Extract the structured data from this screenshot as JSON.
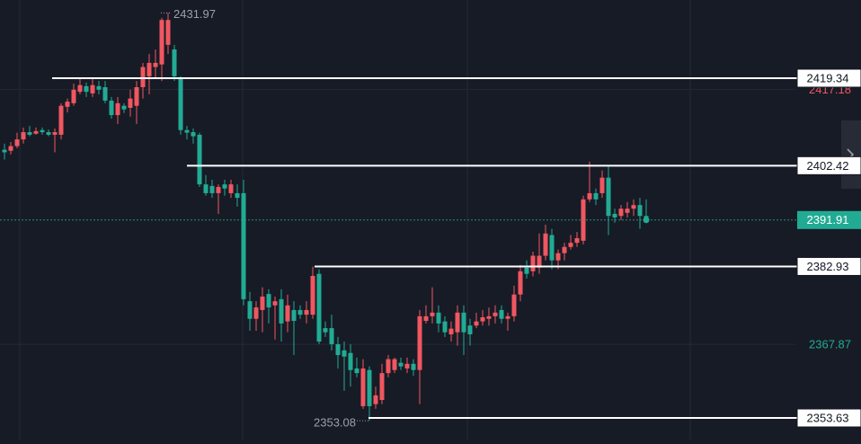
{
  "chart_data": {
    "type": "candlestick",
    "up_color": "#f05760",
    "down_color": "#22ab94",
    "ylim": [
      2349.46,
      2434.46
    ],
    "yticks": [
      2367.87,
      2417.18
    ],
    "ytick_colors": [
      "#22ab94",
      "#f05760"
    ],
    "grid": true,
    "levels": [
      2419.34,
      2402.42,
      2382.93,
      2353.63
    ],
    "open": [
      2405.5,
      2405.3,
      2406.2,
      2407.5,
      2408.9,
      2408.6,
      2409.3,
      2408.9,
      2408.4,
      2408.4,
      2413.8,
      2414.5,
      2416.7,
      2417.8,
      2416.4,
      2417.8,
      2417.6,
      2415.0,
      2412.2,
      2414.0,
      2413.6,
      2414.0,
      2417.6,
      2419.7,
      2421.5,
      2422.0,
      2425.8,
      2424.9,
      2419.2,
      2409.3,
      2408.9,
      2408.4,
      2398.8,
      2398.5,
      2397.1,
      2398.8,
      2397.1,
      2397.1,
      2397.1,
      2376.2,
      2372.8,
      2374.5,
      2377.6,
      2375.4,
      2376.6,
      2372.3,
      2374.5,
      2374.5,
      2373.6,
      2373.6,
      2381.5,
      2371.0,
      2371.0,
      2367.9,
      2366.7,
      2366.2,
      2363.2,
      2355.9,
      2362.9,
      2356.3,
      2357.1,
      2362.3,
      2362.9,
      2364.3,
      2363.2,
      2364.1,
      2362.9,
      2372.4,
      2373.3,
      2374.0,
      2372.3,
      2369.8,
      2370.2,
      2374.0,
      2371.5,
      2371.5,
      2372.3,
      2372.8,
      2373.3,
      2374.5,
      2372.8,
      2373.3,
      2377.5,
      2382.7,
      2382.0,
      2382.7,
      2385.0,
      2389.0,
      2384.1,
      2385.5,
      2386.7,
      2387.5,
      2387.9,
      2395.9,
      2397.1,
      2397.1,
      2400.1,
      2393.1,
      2392.7,
      2393.3,
      2394.1,
      2394.8,
      2392.7
    ],
    "high": [
      2406.7,
      2407.0,
      2408.8,
      2409.8,
      2410.1,
      2409.8,
      2409.8,
      2409.4,
      2409.6,
      2414.5,
      2415.4,
      2418.3,
      2419.2,
      2418.5,
      2419.2,
      2418.8,
      2418.8,
      2415.7,
      2415.7,
      2414.5,
      2417.1,
      2418.8,
      2422.3,
      2424.0,
      2424.9,
      2431.0,
      2431.97,
      2425.8,
      2419.7,
      2410.1,
      2409.6,
      2408.8,
      2400.6,
      2399.7,
      2398.8,
      2399.7,
      2399.7,
      2398.8,
      2399.7,
      2378.0,
      2376.2,
      2378.9,
      2378.5,
      2377.1,
      2378.5,
      2377.5,
      2376.2,
      2375.4,
      2376.2,
      2382.9,
      2382.4,
      2372.3,
      2373.6,
      2369.3,
      2368.4,
      2367.9,
      2365.3,
      2365.0,
      2363.6,
      2359.7,
      2364.1,
      2365.8,
      2365.3,
      2365.3,
      2365.3,
      2365.0,
      2374.5,
      2375.4,
      2378.9,
      2375.4,
      2373.3,
      2372.3,
      2375.4,
      2375.4,
      2372.8,
      2374.0,
      2374.5,
      2375.0,
      2375.4,
      2375.4,
      2374.0,
      2379.2,
      2383.2,
      2384.1,
      2385.8,
      2389.3,
      2391.0,
      2390.2,
      2386.2,
      2387.5,
      2389.0,
      2389.6,
      2396.6,
      2403.2,
      2398.0,
      2401.5,
      2402.3,
      2394.1,
      2394.8,
      2395.4,
      2395.9,
      2396.2,
      2395.9
    ],
    "low": [
      2403.6,
      2404.6,
      2405.8,
      2406.7,
      2408.1,
      2408.4,
      2408.4,
      2408.1,
      2405.0,
      2407.5,
      2412.7,
      2414.0,
      2416.2,
      2415.7,
      2415.7,
      2416.2,
      2414.5,
      2411.5,
      2410.5,
      2412.6,
      2411.9,
      2410.5,
      2415.4,
      2416.2,
      2419.2,
      2418.8,
      2424.0,
      2418.8,
      2408.4,
      2407.5,
      2406.7,
      2398.3,
      2396.6,
      2396.2,
      2393.1,
      2396.6,
      2396.2,
      2394.5,
      2375.4,
      2370.5,
      2370.5,
      2370.2,
      2371.9,
      2368.8,
      2368.4,
      2370.2,
      2365.8,
      2372.8,
      2371.9,
      2372.8,
      2367.9,
      2369.3,
      2366.7,
      2363.2,
      2358.9,
      2359.7,
      2361.5,
      2355.4,
      2353.08,
      2355.4,
      2356.3,
      2361.5,
      2362.3,
      2362.9,
      2362.3,
      2361.8,
      2356.3,
      2371.9,
      2371.9,
      2370.2,
      2369.3,
      2368.4,
      2367.6,
      2365.8,
      2367.6,
      2371.0,
      2371.5,
      2371.5,
      2371.9,
      2371.9,
      2370.5,
      2372.3,
      2376.2,
      2380.6,
      2381.0,
      2381.5,
      2384.1,
      2382.4,
      2382.4,
      2384.1,
      2386.2,
      2386.7,
      2387.2,
      2395.4,
      2394.8,
      2396.2,
      2389.0,
      2391.4,
      2391.9,
      2392.4,
      2392.7,
      2390.2,
      2391.4
    ],
    "close": [
      2405.0,
      2406.2,
      2407.5,
      2408.9,
      2408.4,
      2409.1,
      2408.9,
      2408.4,
      2408.9,
      2414.0,
      2414.8,
      2417.1,
      2418.0,
      2416.7,
      2418.0,
      2417.1,
      2415.0,
      2412.2,
      2414.5,
      2413.3,
      2415.4,
      2417.6,
      2421.5,
      2422.3,
      2422.3,
      2430.6,
      2430.6,
      2419.7,
      2409.3,
      2408.8,
      2408.1,
      2398.8,
      2397.1,
      2397.1,
      2398.3,
      2398.0,
      2398.8,
      2396.2,
      2376.6,
      2372.8,
      2375.0,
      2377.1,
      2375.0,
      2376.2,
      2371.9,
      2375.4,
      2372.4,
      2373.6,
      2374.5,
      2381.1,
      2368.4,
      2370.2,
      2367.9,
      2365.8,
      2365.5,
      2362.9,
      2362.3,
      2363.2,
      2355.9,
      2358.0,
      2362.3,
      2365.0,
      2365.0,
      2363.6,
      2364.1,
      2362.9,
      2373.3,
      2373.3,
      2374.0,
      2371.9,
      2370.2,
      2370.9,
      2374.0,
      2370.2,
      2369.8,
      2372.3,
      2373.1,
      2373.3,
      2374.0,
      2372.8,
      2373.3,
      2377.5,
      2382.0,
      2381.5,
      2385.0,
      2385.0,
      2389.3,
      2384.1,
      2385.5,
      2386.7,
      2387.5,
      2388.4,
      2395.9,
      2397.1,
      2395.9,
      2400.1,
      2392.7,
      2392.4,
      2394.1,
      2394.1,
      2394.8,
      2392.7,
      2391.91
    ]
  }
}
